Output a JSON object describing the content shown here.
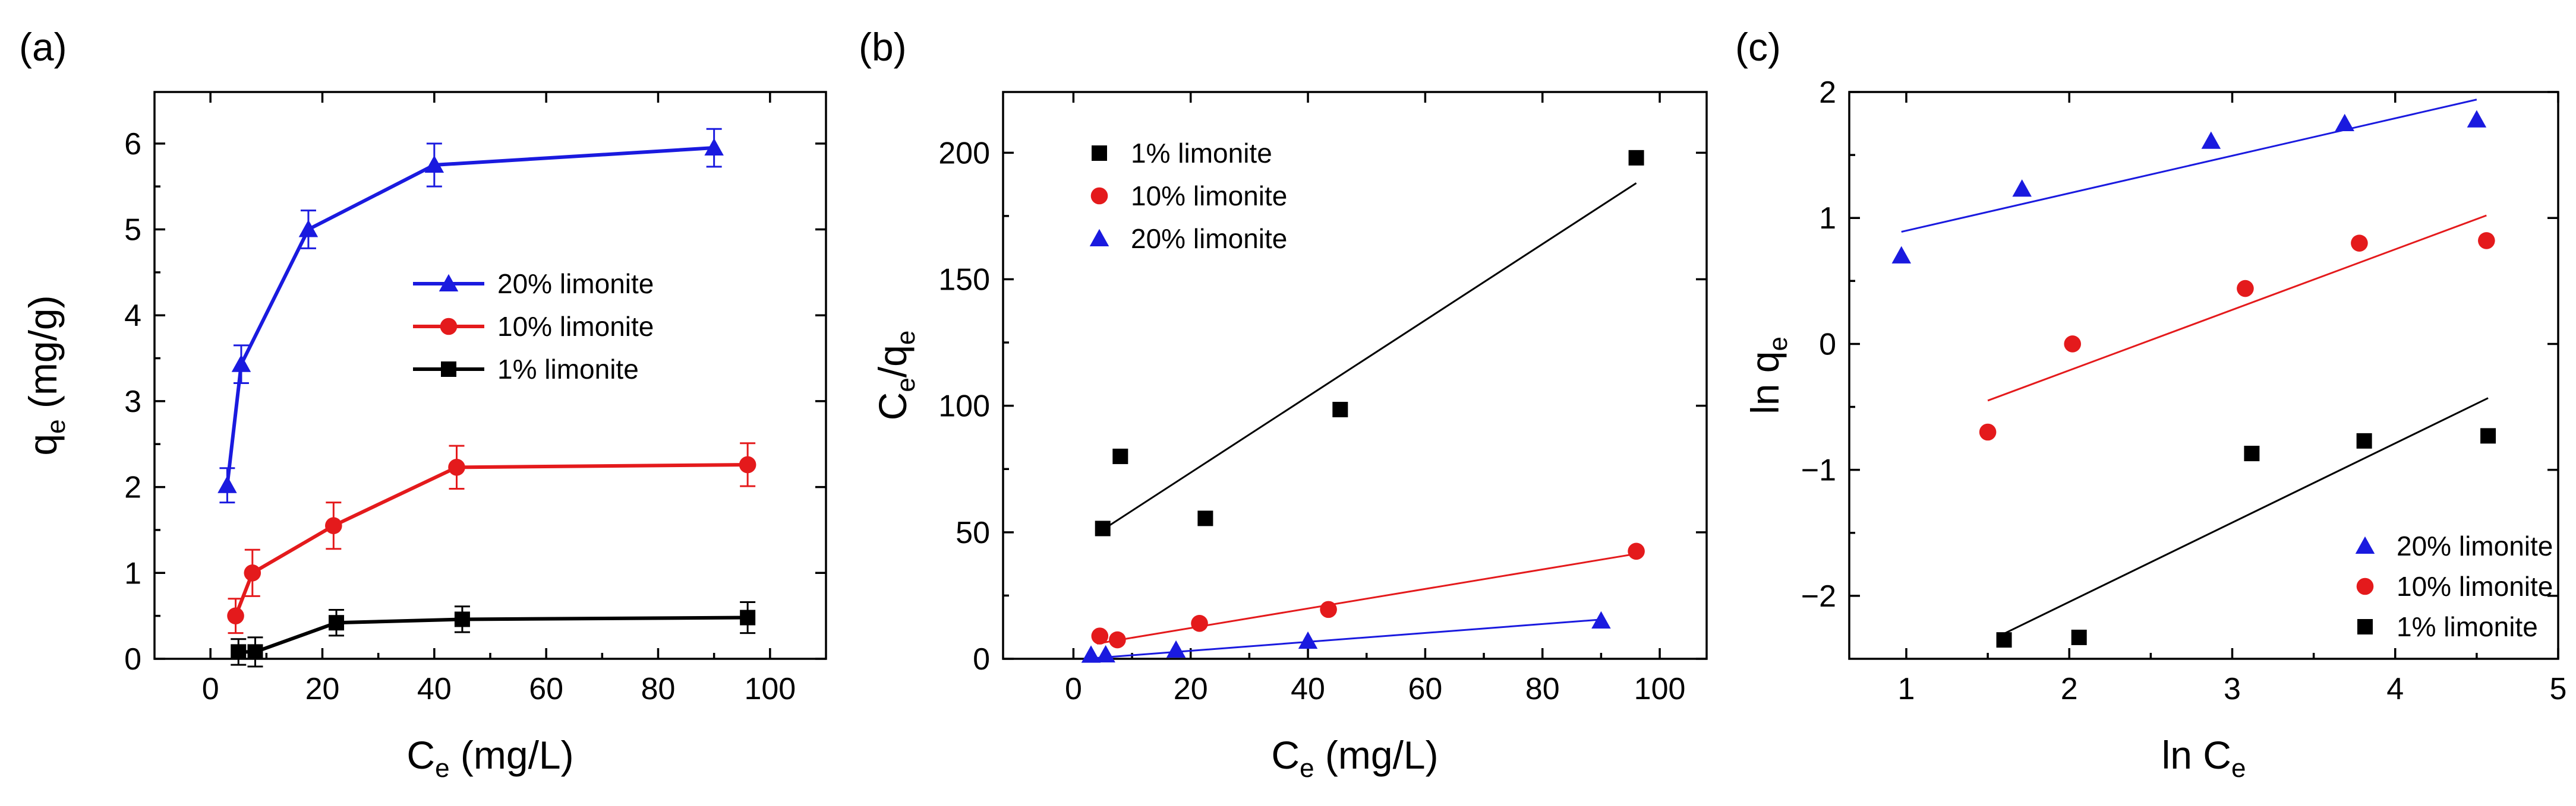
{
  "chart_data": [
    {
      "panel": "(a)",
      "type": "line",
      "xlabel": "C",
      "xlabel_sub": "e",
      "xlabel_unit": " (mg/L)",
      "ylabel": "q",
      "ylabel_sub": "e",
      "ylabel_unit": " (mg/g)",
      "xlim": [
        -10,
        110
      ],
      "ylim": [
        0,
        6.6
      ],
      "xticks": [
        0,
        20,
        40,
        60,
        80,
        100
      ],
      "yticks": [
        0,
        1,
        2,
        3,
        4,
        5,
        6
      ],
      "legend_position": "center-right",
      "legend_order": [
        0,
        1,
        2
      ],
      "series": [
        {
          "name": "20% limonite",
          "color": "#1a1adf",
          "marker": "triangle",
          "x": [
            3.0,
            5.5,
            17.5,
            40.0,
            90.0
          ],
          "y": [
            2.02,
            3.43,
            5.0,
            5.75,
            5.95
          ],
          "err": [
            0.2,
            0.22,
            0.22,
            0.25,
            0.22
          ]
        },
        {
          "name": "10% limonite",
          "color": "#e41a1c",
          "marker": "circle",
          "x": [
            4.5,
            7.5,
            22.0,
            44.0,
            96.0
          ],
          "y": [
            0.5,
            1.0,
            1.55,
            2.23,
            2.26
          ],
          "err": [
            0.2,
            0.27,
            0.27,
            0.25,
            0.25
          ]
        },
        {
          "name": "1% limonite",
          "color": "#000000",
          "marker": "square",
          "x": [
            5.0,
            8.0,
            22.5,
            45.0,
            96.0
          ],
          "y": [
            0.08,
            0.08,
            0.42,
            0.46,
            0.48
          ],
          "err": [
            0.15,
            0.17,
            0.15,
            0.15,
            0.18
          ]
        }
      ]
    },
    {
      "panel": "(b)",
      "type": "scatter",
      "xlabel": "C",
      "xlabel_sub": "e",
      "xlabel_unit": " (mg/L)",
      "ylabel": "C",
      "ylabel_sub": "e",
      "ylabel_mid": "/q",
      "ylabel_sub2": "e",
      "xlim": [
        -12,
        108
      ],
      "ylim": [
        0,
        224
      ],
      "xticks": [
        0,
        20,
        40,
        60,
        80,
        100
      ],
      "yticks": [
        0,
        50,
        100,
        150,
        200
      ],
      "legend_position": "top-left",
      "legend_order": [
        0,
        1,
        2
      ],
      "series": [
        {
          "name": "1% limonite",
          "color": "#000000",
          "marker": "square",
          "x": [
            5.0,
            8.0,
            22.5,
            45.5,
            96.0
          ],
          "y": [
            51.5,
            80.0,
            55.5,
            98.5,
            198.0
          ],
          "fit": [
            [
              5.0,
              51.0
            ],
            [
              96.0,
              188.0
            ]
          ]
        },
        {
          "name": "10% limonite",
          "color": "#e41a1c",
          "marker": "circle",
          "x": [
            4.5,
            7.5,
            21.5,
            43.5,
            96.0
          ],
          "y": [
            9.0,
            7.5,
            14.0,
            19.5,
            42.5
          ],
          "fit": [
            [
              4.0,
              6.0
            ],
            [
              96.0,
              41.5
            ]
          ]
        },
        {
          "name": "20% limonite",
          "color": "#1a1adf",
          "marker": "triangle",
          "x": [
            3.0,
            5.5,
            17.5,
            40.0,
            90.0
          ],
          "y": [
            1.5,
            1.6,
            3.5,
            7.0,
            15.0
          ],
          "fit": [
            [
              2.0,
              0.0
            ],
            [
              90.0,
              15.5
            ]
          ]
        }
      ]
    },
    {
      "panel": "(c)",
      "type": "scatter",
      "xlabel": "ln C",
      "xlabel_sub": "e",
      "xlabel_unit": "",
      "ylabel": "ln q",
      "ylabel_sub": "e",
      "ylabel_unit": "",
      "xlim": [
        0.65,
        5.0
      ],
      "ylim": [
        -2.5,
        2.0
      ],
      "xticks": [
        1,
        2,
        3,
        4,
        5
      ],
      "yticks": [
        -2,
        -1,
        0,
        1,
        2
      ],
      "ytick_labels": [
        "−2",
        "−1",
        "0",
        "1",
        "2"
      ],
      "legend_position": "bottom-right",
      "legend_order": [
        0,
        1,
        2
      ],
      "series": [
        {
          "name": "20% limonite",
          "color": "#1a1adf",
          "marker": "triangle",
          "x": [
            0.97,
            1.71,
            2.87,
            3.69,
            4.5
          ],
          "y": [
            0.7,
            1.23,
            1.61,
            1.75,
            1.78
          ],
          "fit": [
            [
              0.97,
              0.89
            ],
            [
              4.5,
              1.94
            ]
          ]
        },
        {
          "name": "10% limonite",
          "color": "#e41a1c",
          "marker": "circle",
          "x": [
            1.5,
            2.02,
            3.08,
            3.78,
            4.56
          ],
          "y": [
            -0.7,
            0.0,
            0.44,
            0.8,
            0.82
          ],
          "fit": [
            [
              1.5,
              -0.45
            ],
            [
              4.56,
              1.02
            ]
          ]
        },
        {
          "name": "1% limonite",
          "color": "#000000",
          "marker": "square",
          "x": [
            1.6,
            2.06,
            3.12,
            3.81,
            4.57
          ],
          "y": [
            -2.35,
            -2.33,
            -0.87,
            -0.77,
            -0.73
          ],
          "fit": [
            [
              1.6,
              -2.3
            ],
            [
              4.57,
              -0.43
            ]
          ]
        }
      ]
    }
  ]
}
